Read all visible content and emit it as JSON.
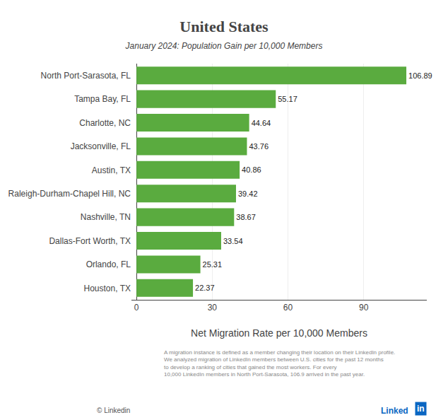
{
  "chart_data": {
    "type": "bar",
    "orientation": "horizontal",
    "title": "United States",
    "subtitle": "January 2024: Population Gain per 10,000 Members",
    "xlabel": "Net Migration Rate per 10,000 Members",
    "categories": [
      "Houston, TX",
      "Orlando, FL",
      "Dallas-Fort Worth, TX",
      "Nashville, TN",
      "Raleigh-Durham-Chapel Hill, NC",
      "Austin, TX",
      "Jacksonville, FL",
      "Charlotte, NC",
      "Tampa Bay, FL",
      "North Port-Sarasota, FL"
    ],
    "values": [
      22.37,
      25.31,
      33.54,
      38.67,
      39.42,
      40.86,
      43.76,
      44.64,
      55.17,
      106.89
    ],
    "color": "#5aab3f",
    "xlim": [
      -2,
      115
    ],
    "xticks": [
      0,
      30,
      60,
      90
    ],
    "grid": true,
    "data_labels": true,
    "annotations": [
      "A migration instance is defined as a member changing their location on their LinkedIn profile.\nWe analyzed migration of LinkedIn members between U.S. cities for the past 12 months\nto develop a ranking of cities that gained the most workers. For every\n10,000 LinkedIn members in North Port-Sarasota, 106.9 arrived in the past year.",
      "© Linkedin",
      "Linked",
      "in"
    ]
  }
}
